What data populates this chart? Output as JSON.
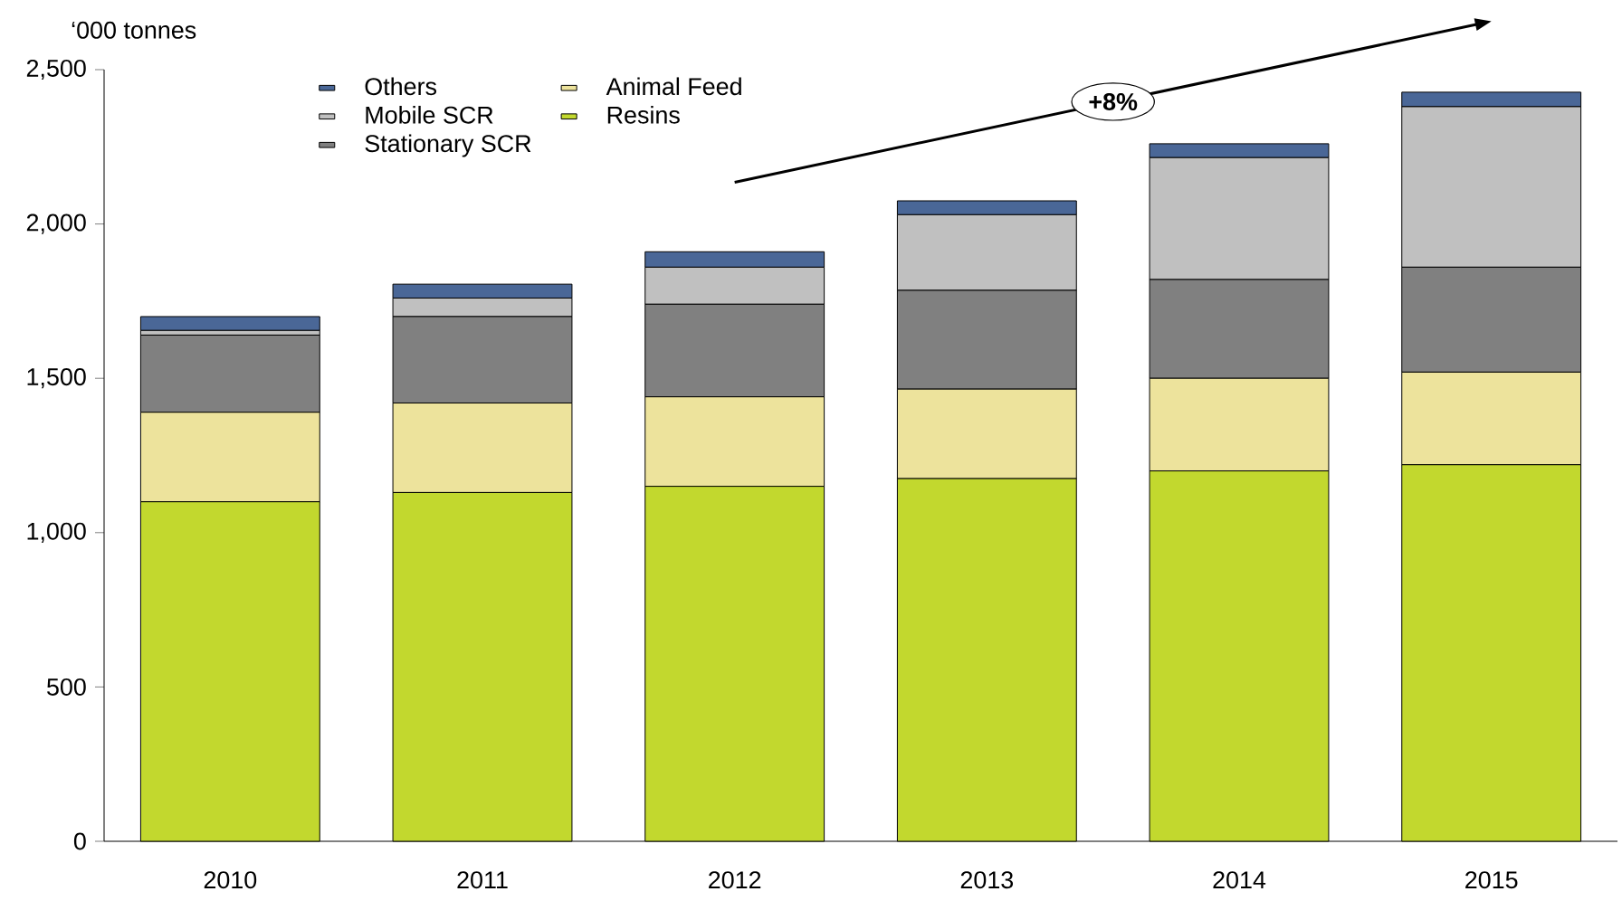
{
  "chart_data": {
    "type": "bar",
    "stacked": true,
    "ylabel": "‘000 tonnes",
    "categories": [
      "2010",
      "2011",
      "2012",
      "2013",
      "2014",
      "2015"
    ],
    "series": [
      {
        "name": "Resins",
        "color": "#c2d82e",
        "values": [
          1100,
          1130,
          1150,
          1175,
          1200,
          1220
        ]
      },
      {
        "name": "Animal Feed",
        "color": "#ede39c",
        "values": [
          290,
          290,
          290,
          290,
          300,
          300
        ]
      },
      {
        "name": "Stationary SCR",
        "color": "#808080",
        "values": [
          250,
          280,
          300,
          320,
          320,
          340
        ]
      },
      {
        "name": "Mobile SCR",
        "color": "#c0c0c0",
        "values": [
          15,
          60,
          120,
          245,
          395,
          520
        ]
      },
      {
        "name": "Others",
        "color": "#4a6797",
        "values": [
          45,
          45,
          50,
          45,
          45,
          47
        ]
      }
    ],
    "ylim": [
      0,
      2500
    ],
    "yticks": [
      0,
      500,
      {
        "value": 1000,
        "label": "1,000"
      },
      {
        "value": 1500,
        "label": "1,500"
      },
      {
        "value": 2000,
        "label": "2,000"
      },
      {
        "value": 2500,
        "label": "2,500"
      }
    ],
    "legend": "top left",
    "annotations": [
      "+8%"
    ]
  }
}
